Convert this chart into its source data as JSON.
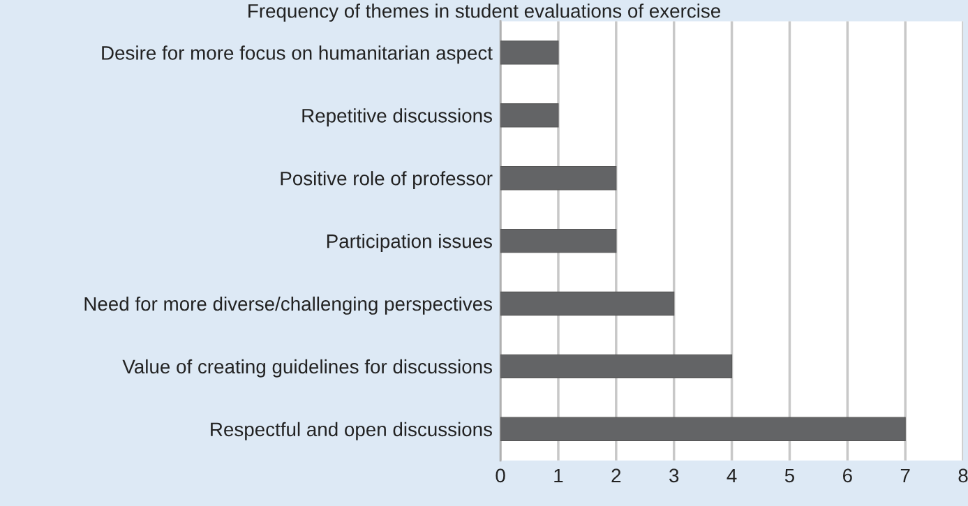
{
  "chart_data": {
    "type": "bar",
    "orientation": "horizontal",
    "title": "Frequency of themes in student evaluations of exercise",
    "categories": [
      "Desire for more focus on humanitarian aspect",
      "Repetitive discussions",
      "Positive role of professor",
      "Participation issues",
      "Need for more diverse/challenging perspectives",
      "Value of creating guidelines for discussions",
      "Respectful and open discussions"
    ],
    "values": [
      1,
      1,
      2,
      2,
      3,
      4,
      7
    ],
    "color": "#636466",
    "xlim": [
      0,
      8
    ],
    "xticks": [
      0,
      1,
      2,
      3,
      4,
      5,
      6,
      7,
      8
    ],
    "grid": "x"
  }
}
